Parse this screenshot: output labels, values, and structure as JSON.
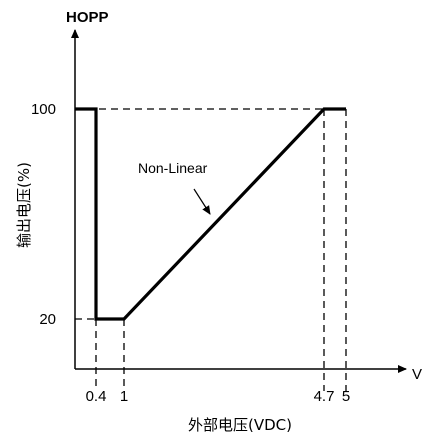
{
  "chart_data": {
    "type": "line",
    "title": "HOPP",
    "xlabel": "外部电压(VDC)",
    "ylabel": "输出电压(%)",
    "x_unit": "V",
    "xlim": [
      0,
      5.5
    ],
    "ylim": [
      0,
      120
    ],
    "x_ticks": [
      {
        "value": 0.4,
        "label": "0.4"
      },
      {
        "value": 1,
        "label": "1"
      },
      {
        "value": 4.7,
        "label": "4.7"
      },
      {
        "value": 5,
        "label": "5"
      }
    ],
    "y_ticks": [
      {
        "value": 20,
        "label": "20"
      },
      {
        "value": 100,
        "label": "100"
      }
    ],
    "series": [
      {
        "x": [
          0,
          0.4,
          0.4,
          1,
          4.7,
          5
        ],
        "y": [
          100,
          100,
          20,
          20,
          100,
          100
        ]
      }
    ],
    "annotations": [
      {
        "text": "Non-Linear",
        "x": 3.1,
        "y": 65
      }
    ],
    "grid": false
  }
}
